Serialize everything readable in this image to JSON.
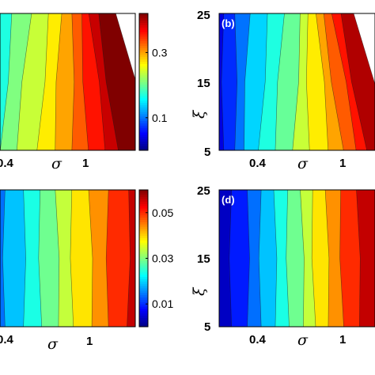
{
  "chart_data": [
    {
      "type": "heatmap",
      "panel_label": "",
      "xlabel": "σ",
      "ylabel": "",
      "x_ticks": [
        "0.4",
        "1"
      ],
      "y_ticks": [],
      "colorbar": {
        "ticks": [
          0.1,
          0.3
        ],
        "range": [
          0.0,
          0.42
        ]
      },
      "bands": [
        {
          "level": 0.08,
          "bottom": 0.03,
          "top": 0.03
        },
        {
          "level": 0.11,
          "bottom": 0.08,
          "top": 0.11
        },
        {
          "level": 0.14,
          "bottom": 0.13,
          "top": 0.19
        },
        {
          "level": 0.17,
          "bottom": 0.19,
          "top": 0.26
        },
        {
          "level": 0.21,
          "bottom": 0.29,
          "top": 0.38
        },
        {
          "level": 0.24,
          "bottom": 0.41,
          "top": 0.48
        },
        {
          "level": 0.27,
          "bottom": 0.52,
          "top": 0.56
        },
        {
          "level": 0.3,
          "bottom": 0.62,
          "top": 0.62
        },
        {
          "level": 0.33,
          "bottom": 0.72,
          "top": 0.68
        },
        {
          "level": 0.36,
          "bottom": 0.82,
          "top": 0.72
        },
        {
          "level": 0.39,
          "bottom": 0.9,
          "top": 0.78
        },
        {
          "level": 0.42,
          "bottom": 1.1,
          "top": 0.88
        }
      ]
    },
    {
      "type": "heatmap",
      "panel_label": "(b)",
      "xlabel": "σ",
      "ylabel": "ξ",
      "x_ticks": [
        "0.4",
        "1"
      ],
      "y_ticks": [
        "5",
        "15",
        "25"
      ],
      "y_range": [
        5,
        25
      ],
      "colorbar": null,
      "bands": [
        {
          "level": 0.04,
          "bottom": 0.03,
          "top": 0.03
        },
        {
          "level": 0.07,
          "bottom": 0.1,
          "top": 0.1
        },
        {
          "level": 0.1,
          "bottom": 0.16,
          "top": 0.2
        },
        {
          "level": 0.14,
          "bottom": 0.25,
          "top": 0.31
        },
        {
          "level": 0.17,
          "bottom": 0.36,
          "top": 0.42
        },
        {
          "level": 0.2,
          "bottom": 0.47,
          "top": 0.52
        },
        {
          "level": 0.24,
          "bottom": 0.58,
          "top": 0.57
        },
        {
          "level": 0.27,
          "bottom": 0.7,
          "top": 0.62
        },
        {
          "level": 0.3,
          "bottom": 0.8,
          "top": 0.67
        },
        {
          "level": 0.33,
          "bottom": 0.88,
          "top": 0.72
        },
        {
          "level": 0.36,
          "bottom": 0.95,
          "top": 0.78
        },
        {
          "level": 0.4,
          "bottom": 1.1,
          "top": 0.86
        }
      ]
    },
    {
      "type": "heatmap",
      "panel_label": "",
      "xlabel": "σ",
      "ylabel": "",
      "x_ticks": [
        "0.4",
        "1"
      ],
      "y_ticks": [],
      "colorbar": {
        "ticks": [
          0.01,
          0.03,
          0.05
        ],
        "range": [
          0.0,
          0.06
        ]
      },
      "bands": [
        {
          "level": 0.004,
          "bottom": 0.02,
          "top": 0.02
        },
        {
          "level": 0.009,
          "bottom": 0.1,
          "top": 0.1
        },
        {
          "level": 0.014,
          "bottom": 0.22,
          "top": 0.22
        },
        {
          "level": 0.019,
          "bottom": 0.33,
          "top": 0.33
        },
        {
          "level": 0.024,
          "bottom": 0.44,
          "top": 0.43
        },
        {
          "level": 0.029,
          "bottom": 0.54,
          "top": 0.52
        },
        {
          "level": 0.034,
          "bottom": 0.63,
          "top": 0.62
        },
        {
          "level": 0.039,
          "bottom": 0.74,
          "top": 0.72
        },
        {
          "level": 0.044,
          "bottom": 0.84,
          "top": 0.84
        },
        {
          "level": 0.05,
          "bottom": 0.95,
          "top": 0.96
        },
        {
          "level": 0.056,
          "bottom": 1.1,
          "top": 1.1
        }
      ]
    },
    {
      "type": "heatmap",
      "panel_label": "(d)",
      "xlabel": "σ",
      "ylabel": "ξ",
      "x_ticks": [
        "0.4",
        "1"
      ],
      "y_ticks": [
        "5",
        "15",
        "25"
      ],
      "y_range": [
        5,
        25
      ],
      "colorbar": null,
      "bands": [
        {
          "level": 0.004,
          "bottom": 0.08,
          "top": 0.08
        },
        {
          "level": 0.009,
          "bottom": 0.18,
          "top": 0.18
        },
        {
          "level": 0.014,
          "bottom": 0.27,
          "top": 0.27
        },
        {
          "level": 0.019,
          "bottom": 0.36,
          "top": 0.35
        },
        {
          "level": 0.024,
          "bottom": 0.45,
          "top": 0.44
        },
        {
          "level": 0.029,
          "bottom": 0.54,
          "top": 0.52
        },
        {
          "level": 0.034,
          "bottom": 0.62,
          "top": 0.6
        },
        {
          "level": 0.039,
          "bottom": 0.7,
          "top": 0.68
        },
        {
          "level": 0.044,
          "bottom": 0.8,
          "top": 0.78
        },
        {
          "level": 0.05,
          "bottom": 0.9,
          "top": 0.88
        },
        {
          "level": 0.056,
          "bottom": 1.1,
          "top": 1.1
        }
      ]
    }
  ]
}
